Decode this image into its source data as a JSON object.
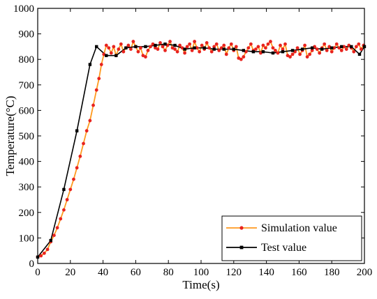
{
  "chart_data": {
    "type": "line",
    "title": "",
    "xlabel": "Time(s)",
    "ylabel": "Temperature(°C)",
    "xlim": [
      0,
      200
    ],
    "ylim": [
      0,
      1000
    ],
    "xticks": [
      0,
      20,
      40,
      60,
      80,
      100,
      120,
      140,
      160,
      180,
      200
    ],
    "yticks": [
      0,
      100,
      200,
      300,
      400,
      500,
      600,
      700,
      800,
      900,
      1000
    ],
    "grid": false,
    "legend_position": "bottom-right",
    "series": [
      {
        "name": "Simulation value",
        "color": "#ff9a1f",
        "marker_color": "#e8231e",
        "marker": "dot",
        "x": [
          0,
          2,
          4,
          6,
          8,
          10,
          12,
          14,
          16,
          18,
          20,
          22,
          24,
          26,
          28,
          30,
          32,
          34,
          36,
          37.5,
          39,
          40.5,
          42,
          43.5,
          45,
          46.5,
          48,
          49.5,
          51,
          52.5,
          54,
          55.5,
          57,
          58.5,
          60,
          61.5,
          63,
          64.5,
          66,
          67.5,
          69,
          70.5,
          72,
          73.5,
          75,
          76.5,
          78,
          79.5,
          81,
          82.5,
          84,
          85.5,
          87,
          88.5,
          90,
          91.5,
          93,
          94.5,
          96,
          97.5,
          99,
          100.5,
          102,
          103.5,
          105,
          106.5,
          108,
          109.5,
          111,
          112.5,
          114,
          115.5,
          117,
          118.5,
          120,
          121.5,
          123,
          124.5,
          126,
          127.5,
          129,
          130.5,
          132,
          133.5,
          135,
          136.5,
          138,
          139.5,
          141,
          142.5,
          144,
          145.5,
          147,
          148.5,
          150,
          151.5,
          153,
          154.5,
          156,
          157.5,
          159,
          160.5,
          162,
          163.5,
          165,
          166.5,
          168,
          169.5,
          171,
          172.5,
          174,
          175.5,
          177,
          178.5,
          180,
          181.5,
          183,
          184.5,
          186,
          187.5,
          189,
          190.5,
          192,
          193.5,
          195,
          196.5,
          198,
          199.5
        ],
        "y": [
          25,
          30,
          40,
          55,
          85,
          110,
          140,
          175,
          210,
          250,
          290,
          330,
          375,
          420,
          470,
          520,
          560,
          620,
          680,
          725,
          780,
          820,
          855,
          845,
          825,
          850,
          815,
          840,
          860,
          830,
          845,
          855,
          840,
          870,
          850,
          830,
          845,
          815,
          810,
          835,
          850,
          860,
          845,
          840,
          865,
          850,
          835,
          855,
          870,
          845,
          840,
          830,
          855,
          845,
          825,
          850,
          860,
          835,
          870,
          845,
          830,
          855,
          840,
          865,
          845,
          830,
          850,
          860,
          835,
          845,
          855,
          820,
          845,
          860,
          835,
          850,
          805,
          800,
          810,
          830,
          845,
          860,
          835,
          840,
          850,
          825,
          855,
          845,
          860,
          870,
          845,
          835,
          825,
          855,
          840,
          860,
          815,
          810,
          820,
          830,
          845,
          820,
          835,
          855,
          810,
          820,
          835,
          850,
          840,
          825,
          845,
          860,
          835,
          850,
          830,
          845,
          860,
          845,
          835,
          850,
          840,
          855,
          845,
          830,
          850,
          860,
          840,
          855
        ]
      },
      {
        "name": "Test value",
        "color": "#000000",
        "marker_color": "#000000",
        "marker": "square",
        "x": [
          0,
          8,
          16,
          24,
          32,
          36,
          42,
          48,
          54,
          60,
          66,
          72,
          78,
          84,
          90,
          96,
          102,
          108,
          114,
          120,
          126,
          132,
          138,
          144,
          150,
          156,
          162,
          168,
          174,
          180,
          186,
          192,
          197,
          200
        ],
        "y": [
          25,
          90,
          290,
          520,
          780,
          850,
          815,
          815,
          845,
          850,
          850,
          855,
          860,
          855,
          840,
          845,
          845,
          840,
          840,
          840,
          835,
          830,
          830,
          825,
          830,
          835,
          840,
          845,
          840,
          845,
          850,
          850,
          820,
          850
        ]
      }
    ]
  }
}
